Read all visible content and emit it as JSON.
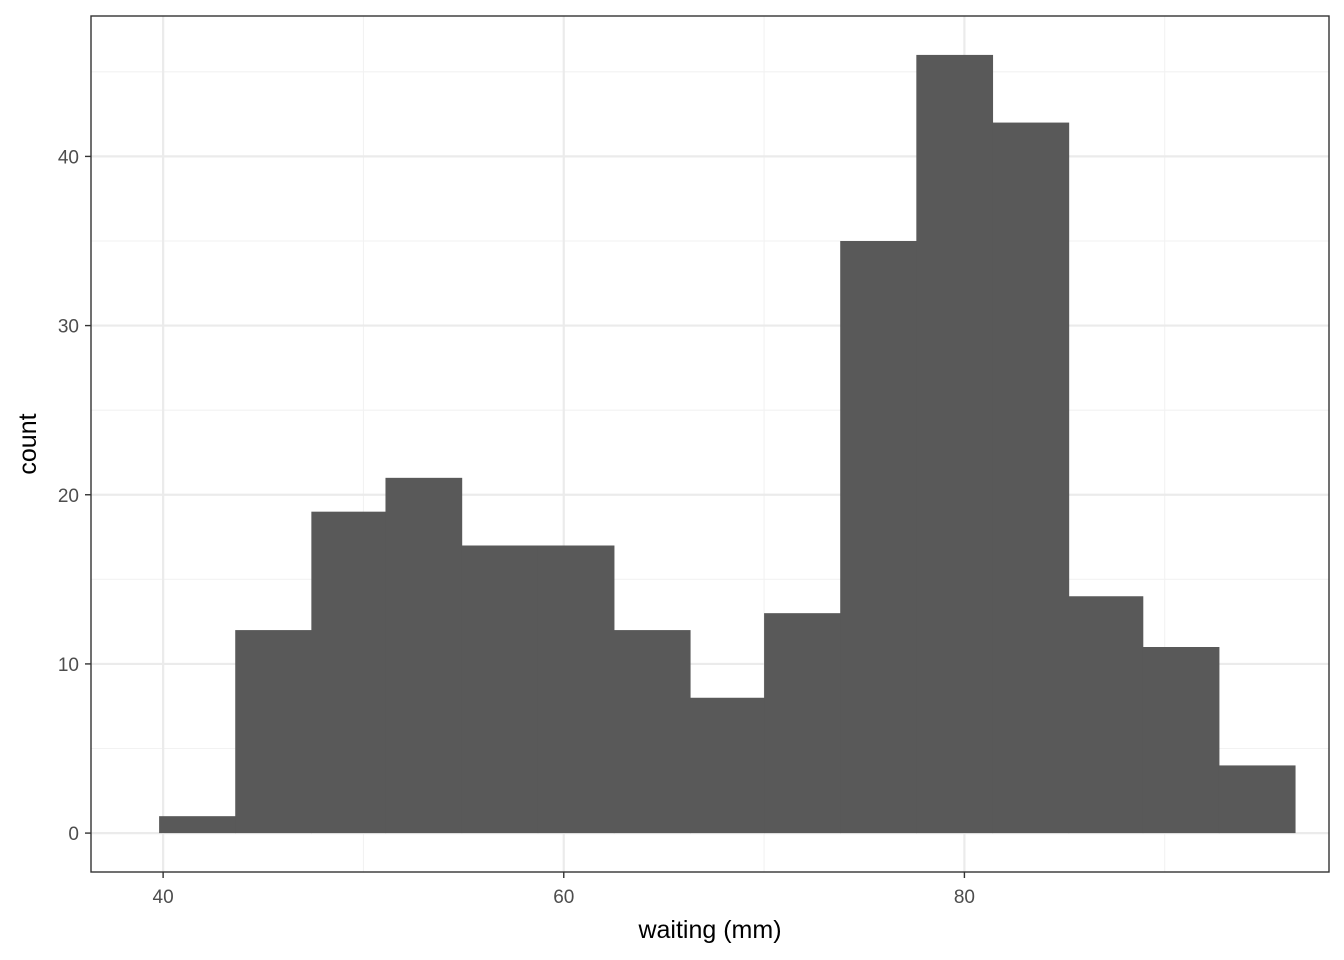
{
  "chart_data": {
    "type": "bar",
    "xlabel": "waiting (mm)",
    "ylabel": "count",
    "xlim": [
      36.4,
      98.2
    ],
    "ylim": [
      -2.3,
      48.3
    ],
    "x_ticks_major": [
      40,
      60,
      80
    ],
    "x_ticks_minor": [
      50,
      70,
      90
    ],
    "y_ticks_major": [
      0,
      10,
      20,
      30,
      40
    ],
    "y_ticks_minor": [
      5,
      15,
      25,
      35,
      45
    ],
    "grid": true,
    "bins": [
      {
        "x0": 39.8,
        "x1": 43.6,
        "count": 1
      },
      {
        "x0": 43.6,
        "x1": 47.4,
        "count": 12
      },
      {
        "x0": 47.4,
        "x1": 51.1,
        "count": 19
      },
      {
        "x0": 51.1,
        "x1": 54.9,
        "count": 21
      },
      {
        "x0": 54.9,
        "x1": 58.7,
        "count": 17
      },
      {
        "x0": 58.7,
        "x1": 62.5,
        "count": 17
      },
      {
        "x0": 62.5,
        "x1": 66.3,
        "count": 12
      },
      {
        "x0": 66.3,
        "x1": 70.0,
        "count": 8
      },
      {
        "x0": 70.0,
        "x1": 73.8,
        "count": 13
      },
      {
        "x0": 73.8,
        "x1": 77.6,
        "count": 35
      },
      {
        "x0": 77.6,
        "x1": 81.4,
        "count": 46
      },
      {
        "x0": 81.4,
        "x1": 85.2,
        "count": 42
      },
      {
        "x0": 85.2,
        "x1": 88.9,
        "count": 14
      },
      {
        "x0": 88.9,
        "x1": 92.7,
        "count": 11
      },
      {
        "x0": 92.7,
        "x1": 96.5,
        "count": 4
      }
    ],
    "colors": {
      "bar": "#595959",
      "panel_border": "#333333",
      "grid_major": "#ebebeb",
      "grid_minor": "#f2f2f2",
      "tick_text": "#4d4d4d"
    }
  }
}
